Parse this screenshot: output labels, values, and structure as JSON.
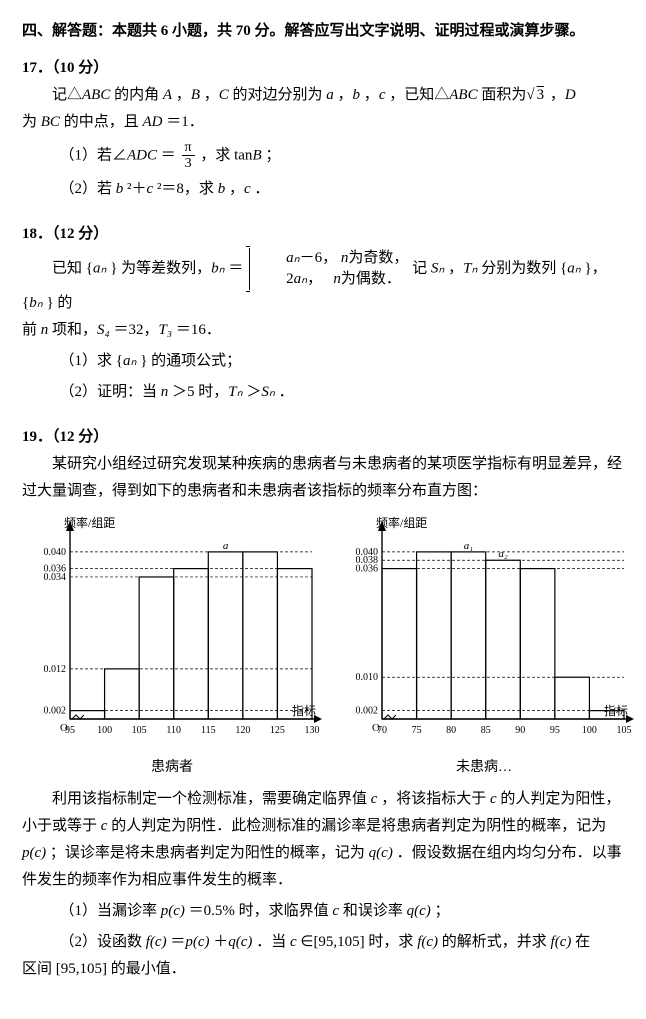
{
  "section_header": "四、解答题：本题共 6 小题，共 70 分。解答应写出文字说明、证明过程或演算步骤。",
  "p17": {
    "num": "17．（10 分）",
    "intro_a": "记△",
    "intro_b": " 的内角 ",
    "intro_c": "，",
    "intro_d": "，",
    "intro_e": " 的对边分别为 ",
    "intro_f": "，",
    "intro_g": "，",
    "intro_h": "，已知△",
    "intro_i": " 面积为",
    "intro_j": "，",
    "intro_k": "为 ",
    "intro_l": " 的中点，且 ",
    "intro_m": "＝1．",
    "ABC": "ABC",
    "A": "A",
    "B": "B",
    "C": "C",
    "a": "a",
    "b": "b",
    "c": "c",
    "sqrt3": "3",
    "D": "D",
    "BC": "BC",
    "AD": "AD",
    "sub1_a": "（1）若∠",
    "sub1_b": "＝",
    "sub1_c": "，求 tan",
    "sub1_d": "；",
    "ADC": "ADC",
    "pi": "π",
    "three": "3",
    "sub2_a": "（2）若 ",
    "sub2_b": "²＋",
    "sub2_c": "²＝8，求 ",
    "sub2_d": "，",
    "sub2_e": "．"
  },
  "p18": {
    "num": "18．（12 分）",
    "intro_a": "已知 {",
    "intro_b": "} 为等差数列，",
    "intro_c": "＝",
    "an": "aₙ",
    "bn": "bₙ",
    "case1_a": "aₙ",
    "case1_b": "－6，",
    "case1_c": "n",
    "case1_d": "为奇数，",
    "case2_a": "2",
    "case2_b": "aₙ",
    "case2_c": "，",
    "case2_d": "n",
    "case2_e": "为偶数．",
    "intro_d": "记 ",
    "intro_e": "，",
    "intro_f": " 分别为数列 {",
    "intro_g": "}，{",
    "intro_h": "} 的",
    "Sn": "Sₙ",
    "Tn": "Tₙ",
    "line2_a": "前 ",
    "line2_b": " 项和，",
    "line2_c": "＝32，",
    "line2_d": "＝16．",
    "n": "n",
    "S4": "S₄",
    "T3": "T₃",
    "sub1": "（1）求 {",
    "sub1_b": "} 的通项公式；",
    "sub2_a": "（2）证明：当 ",
    "sub2_b": "＞5 时，",
    "sub2_c": "＞",
    "sub2_d": "．"
  },
  "p19": {
    "num": "19．（12 分）",
    "para1": "某研究小组经过研究发现某种疾病的患病者与未患病者的某项医学指标有明显差异，经过大量调查，得到如下的患病者和未患病者该指标的频率分布直方图：",
    "para2_a": "利用该指标制定一个检测标准，需要确定临界值 ",
    "para2_b": "，将该指标大于 ",
    "para2_c": " 的人判定为阳性，小于或等于 ",
    "para2_d": " 的人判定为阴性．此检测标准的漏诊率是将患病者判定为阴性的概率，记为 ",
    "para2_e": "；误诊率是将未患病者判定为阳性的概率，记为 ",
    "para2_f": "．假设数据在组内均匀分布．以事件发生的频率作为相应事件发生的概率．",
    "c": "c",
    "pc": "p(c)",
    "qc": "q(c)",
    "sub1_a": "（1）当漏诊率 ",
    "sub1_b": "＝0.5% 时，求临界值 ",
    "sub1_c": " 和误诊率 ",
    "sub1_d": "；",
    "sub2_a": "（2）设函数 ",
    "sub2_b": "＝",
    "sub2_c": "＋",
    "sub2_d": "．当 ",
    "sub2_e": "∈[95,105] 时，求 ",
    "sub2_f": " 的解析式，并求 ",
    "sub2_g": " 在",
    "fc": "f(c)",
    "line3": "区间 [95,105] 的最小值．"
  },
  "chart_left": {
    "ylabel": "频率/组距",
    "xlabel": "指标",
    "caption": "患病者",
    "bins": [
      95,
      100,
      105,
      110,
      115,
      120,
      125,
      130
    ],
    "heights": [
      0.002,
      0.012,
      0.034,
      0.036,
      0.04,
      0.04,
      0.036
    ],
    "ymax": 0.045,
    "yticks": [
      {
        "v": 0.002,
        "l": "0.002"
      },
      {
        "v": 0.012,
        "l": "0.012"
      },
      {
        "v": 0.034,
        "l": "0.034"
      },
      {
        "v": 0.036,
        "l": "0.036"
      },
      {
        "v": 0.04,
        "l": "0.040"
      }
    ],
    "xticks": [
      "95",
      "100",
      "105",
      "110",
      "115",
      "120",
      "125",
      "130"
    ],
    "bar_labels": [
      "",
      "",
      "",
      "",
      "a",
      "",
      ""
    ],
    "axis_color": "#000000",
    "dash_color": "#000000",
    "bg": "#ffffff"
  },
  "chart_right": {
    "ylabel": "频率/组距",
    "xlabel": "指标",
    "caption": "未患病…",
    "bins": [
      70,
      75,
      80,
      85,
      90,
      95,
      100,
      105
    ],
    "heights": [
      0.036,
      0.04,
      0.04,
      0.038,
      0.036,
      0.01,
      0.002
    ],
    "ymax": 0.045,
    "yticks": [
      {
        "v": 0.002,
        "l": "0.002"
      },
      {
        "v": 0.01,
        "l": "0.010"
      },
      {
        "v": 0.036,
        "l": "0.036"
      },
      {
        "v": 0.038,
        "l": "0.038"
      },
      {
        "v": 0.04,
        "l": "0.040"
      }
    ],
    "xticks": [
      "70",
      "75",
      "80",
      "85",
      "90",
      "95",
      "100",
      "105"
    ],
    "bar_labels": [
      "",
      "",
      "a₁",
      "a₂",
      "",
      "",
      ""
    ],
    "axis_color": "#000000",
    "dash_color": "#000000",
    "bg": "#ffffff"
  }
}
